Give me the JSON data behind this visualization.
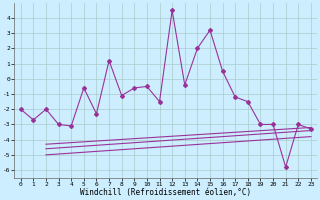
{
  "xlabel": "Windchill (Refroidissement éolien,°C)",
  "bg_color": "#cceeff",
  "grid_color": "#aacccc",
  "line_color": "#993399",
  "ylim": [
    -6.5,
    5.0
  ],
  "xlim": [
    -0.5,
    23.5
  ],
  "yticks": [
    -6,
    -5,
    -4,
    -3,
    -2,
    -1,
    0,
    1,
    2,
    3,
    4
  ],
  "xticks": [
    0,
    1,
    2,
    3,
    4,
    5,
    6,
    7,
    8,
    9,
    10,
    11,
    12,
    13,
    14,
    15,
    16,
    17,
    18,
    19,
    20,
    21,
    22,
    23
  ],
  "main_x": [
    0,
    1,
    2,
    3,
    4,
    5,
    6,
    7,
    8,
    9,
    10,
    11,
    12,
    13,
    14,
    15,
    16,
    17,
    18,
    19,
    20,
    21,
    22,
    23
  ],
  "main_y": [
    -2.0,
    -2.7,
    -2.0,
    -3.0,
    -3.1,
    -0.6,
    -2.3,
    1.2,
    -1.1,
    -0.6,
    -0.5,
    -1.5,
    4.5,
    -0.4,
    2.0,
    3.2,
    0.5,
    -1.2,
    -1.5,
    -3.0,
    -3.0,
    -5.8,
    -3.0,
    -3.3
  ],
  "line2_x": [
    2,
    23
  ],
  "line2_y": [
    -4.3,
    -3.2
  ],
  "line3_x": [
    2,
    23
  ],
  "line3_y": [
    -4.6,
    -3.4
  ],
  "line4_x": [
    2,
    23
  ],
  "line4_y": [
    -5.0,
    -3.8
  ],
  "marker": "D",
  "markersize": 2,
  "linewidth": 0.8,
  "xlabel_fontsize": 5.5,
  "tick_fontsize": 4.5
}
